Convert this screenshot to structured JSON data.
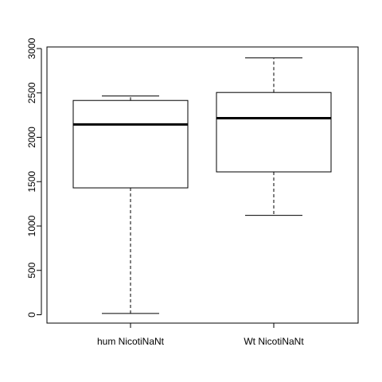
{
  "chart_data": {
    "type": "boxplot",
    "title": "",
    "xlabel": "",
    "ylabel": "",
    "ylim": [
      -100,
      3000
    ],
    "yticks": [
      0,
      500,
      1000,
      1500,
      2000,
      2500,
      3000
    ],
    "grid": false,
    "categories": [
      "hum NicotiNaNt",
      "Wt NicotiNaNt"
    ],
    "boxes": [
      {
        "min": 15,
        "q1": 1430,
        "median": 2145,
        "q3": 2415,
        "max": 2465
      },
      {
        "min": 1120,
        "q1": 1610,
        "median": 2215,
        "q3": 2505,
        "max": 2895
      }
    ]
  }
}
